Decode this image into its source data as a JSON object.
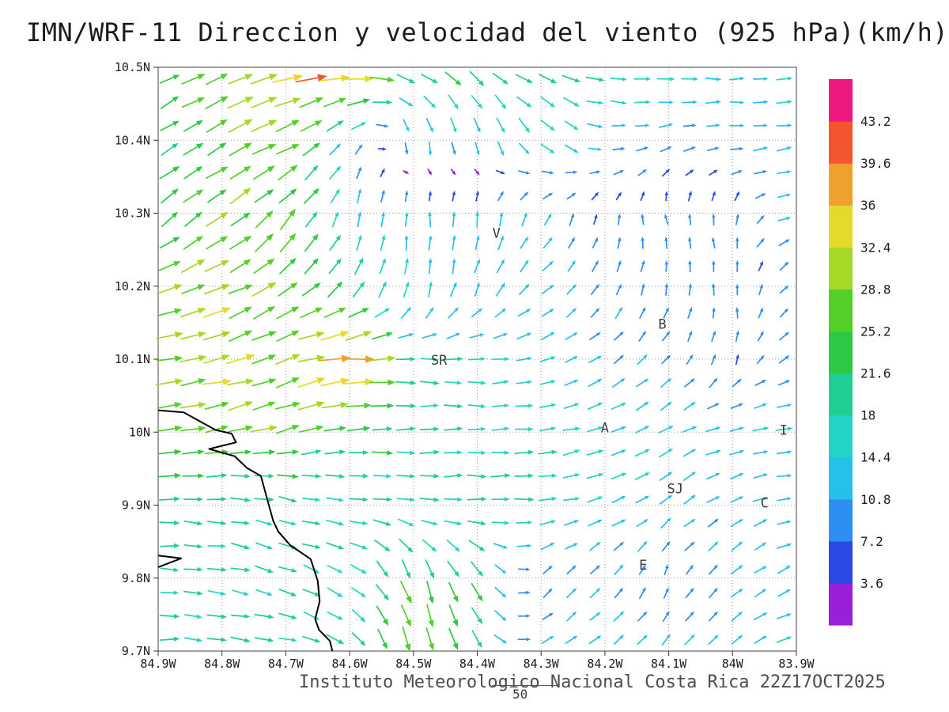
{
  "title": "IMN/WRF-11 Direccion y velocidad del viento (925 hPa)(km/h)",
  "footer": {
    "credit": "Instituto Meteorologico Nacional Costa Rica  22Z17OCT2025",
    "forecast_hour": "50"
  },
  "axes": {
    "lat_ticks": [
      "10.5N",
      "10.4N",
      "10.3N",
      "10.2N",
      "10.1N",
      "10N",
      "9.9N",
      "9.8N",
      "9.7N"
    ],
    "lon_ticks": [
      "84.9W",
      "84.8W",
      "84.7W",
      "84.6W",
      "84.5W",
      "84.4W",
      "84.3W",
      "84.2W",
      "84.1W",
      "84W",
      "83.9W"
    ],
    "lat_range": [
      9.7,
      10.5
    ],
    "lon_range": [
      -84.9,
      -83.9
    ],
    "grid": "dotted"
  },
  "chart_data": {
    "type": "quiver",
    "title": "IMN/WRF-11 Direccion y velocidad del viento (925 hPa)(km/h)",
    "units": "km/h",
    "level": "925 hPa",
    "xlim": [
      -84.9,
      -83.9
    ],
    "ylim": [
      9.7,
      10.5
    ],
    "grid": true,
    "legend_position": "colorbar-right",
    "x": [
      -84.9,
      -84.8,
      -84.7,
      -84.6,
      -84.5,
      -84.4,
      -84.3,
      -84.2,
      -84.1,
      -84.0,
      -83.9
    ],
    "y": [
      10.5,
      10.4,
      10.3,
      10.2,
      10.1,
      10.0,
      9.9,
      9.8,
      9.7
    ],
    "vector_format": "[direction_deg_ccw_from_east, speed_kmh]",
    "vectors": [
      [
        [
          30,
          24
        ],
        [
          20,
          30
        ],
        [
          10,
          37
        ],
        [
          5,
          44
        ],
        [
          -20,
          22
        ],
        [
          -40,
          22
        ],
        [
          -25,
          20
        ],
        [
          -10,
          17
        ],
        [
          0,
          16
        ],
        [
          0,
          14
        ],
        [
          5,
          13
        ]
      ],
      [
        [
          35,
          22
        ],
        [
          30,
          26
        ],
        [
          25,
          30
        ],
        [
          60,
          12
        ],
        [
          -85,
          14
        ],
        [
          -80,
          15
        ],
        [
          -45,
          18
        ],
        [
          -5,
          12
        ],
        [
          15,
          10
        ],
        [
          0,
          12
        ],
        [
          10,
          14
        ]
      ],
      [
        [
          40,
          24
        ],
        [
          35,
          27
        ],
        [
          50,
          26
        ],
        [
          75,
          14
        ],
        [
          90,
          13
        ],
        [
          85,
          14
        ],
        [
          60,
          12
        ],
        [
          80,
          7
        ],
        [
          110,
          8
        ],
        [
          90,
          8
        ],
        [
          10,
          13
        ]
      ],
      [
        [
          25,
          28
        ],
        [
          20,
          31
        ],
        [
          35,
          28
        ],
        [
          55,
          20
        ],
        [
          85,
          15
        ],
        [
          70,
          14
        ],
        [
          40,
          13
        ],
        [
          60,
          10
        ],
        [
          85,
          9
        ],
        [
          100,
          8
        ],
        [
          40,
          10
        ]
      ],
      [
        [
          10,
          30
        ],
        [
          15,
          32
        ],
        [
          20,
          30
        ],
        [
          5,
          40
        ],
        [
          0,
          18
        ],
        [
          0,
          17
        ],
        [
          15,
          14
        ],
        [
          35,
          12
        ],
        [
          45,
          10
        ],
        [
          80,
          8
        ],
        [
          30,
          10
        ]
      ],
      [
        [
          5,
          26
        ],
        [
          10,
          28
        ],
        [
          15,
          26
        ],
        [
          5,
          24
        ],
        [
          0,
          18
        ],
        [
          0,
          18
        ],
        [
          5,
          17
        ],
        [
          20,
          16
        ],
        [
          30,
          14
        ],
        [
          10,
          14
        ],
        [
          0,
          15
        ]
      ],
      [
        [
          0,
          20
        ],
        [
          -5,
          19
        ],
        [
          -15,
          18
        ],
        [
          -5,
          18
        ],
        [
          0,
          19
        ],
        [
          0,
          20
        ],
        [
          5,
          18
        ],
        [
          20,
          15
        ],
        [
          35,
          13
        ],
        [
          30,
          12
        ],
        [
          10,
          13
        ]
      ],
      [
        [
          0,
          19
        ],
        [
          -10,
          18
        ],
        [
          -20,
          18
        ],
        [
          -30,
          17
        ],
        [
          -70,
          26
        ],
        [
          -60,
          20
        ],
        [
          45,
          9
        ],
        [
          50,
          11
        ],
        [
          75,
          8
        ],
        [
          40,
          12
        ],
        [
          25,
          13
        ]
      ],
      [
        [
          0,
          19
        ],
        [
          -5,
          19
        ],
        [
          -10,
          18
        ],
        [
          -35,
          20
        ],
        [
          -80,
          30
        ],
        [
          -55,
          22
        ],
        [
          30,
          12
        ],
        [
          40,
          13
        ],
        [
          45,
          12
        ],
        [
          35,
          13
        ],
        [
          20,
          14
        ]
      ]
    ],
    "speed_levels": [
      3.6,
      7.2,
      10.8,
      14.4,
      18,
      21.6,
      25.2,
      28.8,
      32.4,
      36,
      39.6,
      43.2
    ],
    "speed_colors": [
      "#991fd9",
      "#2b49e3",
      "#2e8ff2",
      "#27c0ea",
      "#23d3c6",
      "#1fce93",
      "#2cc944",
      "#52cf28",
      "#a6d827",
      "#e5da2a",
      "#f0a02c",
      "#f2552f",
      "#ef1a7f"
    ],
    "annotations": [
      {
        "label": "V",
        "lon": -84.37,
        "lat": 10.273
      },
      {
        "label": "B",
        "lon": -84.11,
        "lat": 10.148
      },
      {
        "label": "SR",
        "lon": -84.46,
        "lat": 10.099
      },
      {
        "label": "A",
        "lon": -84.2,
        "lat": 10.006
      },
      {
        "label": "I",
        "lon": -83.92,
        "lat": 10.003
      },
      {
        "label": "SJ",
        "lon": -84.09,
        "lat": 9.923
      },
      {
        "label": "C",
        "lon": -83.95,
        "lat": 9.903
      },
      {
        "label": "E",
        "lon": -84.14,
        "lat": 9.818
      }
    ],
    "coastline": [
      [
        [
          -84.9,
          10.03
        ],
        [
          -84.86,
          10.027
        ],
        [
          -84.81,
          10.003
        ],
        [
          -84.785,
          9.998
        ],
        [
          -84.778,
          9.986
        ],
        [
          -84.82,
          9.977
        ],
        [
          -84.78,
          9.967
        ],
        [
          -84.761,
          9.951
        ],
        [
          -84.739,
          9.94
        ],
        [
          -84.73,
          9.911
        ],
        [
          -84.72,
          9.879
        ],
        [
          -84.712,
          9.864
        ],
        [
          -84.693,
          9.845
        ],
        [
          -84.661,
          9.826
        ],
        [
          -84.65,
          9.796
        ],
        [
          -84.647,
          9.768
        ],
        [
          -84.654,
          9.744
        ],
        [
          -84.648,
          9.729
        ],
        [
          -84.631,
          9.714
        ],
        [
          -84.627,
          9.7
        ]
      ],
      [
        [
          -84.9,
          9.831
        ],
        [
          -84.864,
          9.827
        ],
        [
          -84.9,
          9.815
        ]
      ]
    ]
  }
}
